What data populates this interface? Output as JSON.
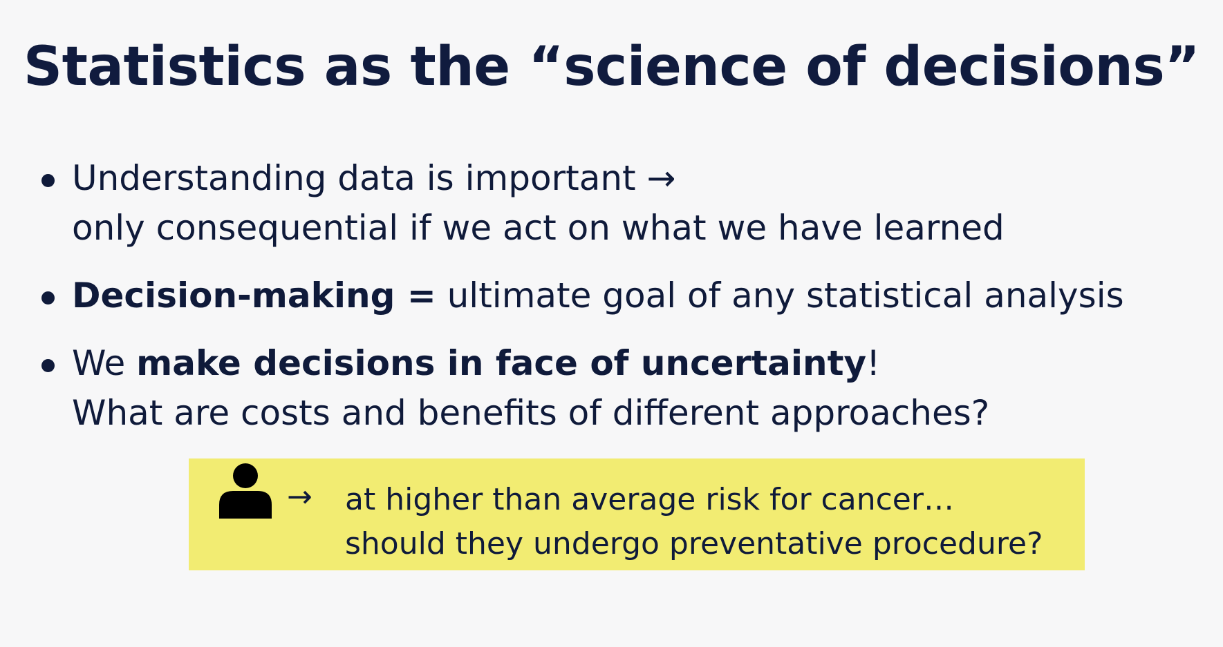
{
  "slide": {
    "title": "Statistics as the “science of decisions”",
    "bullets": [
      {
        "line1": "Understanding data is important →",
        "line2": "only consequential if we act on what we have learned"
      },
      {
        "bold": "Decision-making =",
        "text": " ultimate goal of any statistical analysis"
      },
      {
        "pre": "We ",
        "bold": "make decisions in face of uncertainty",
        "post": "!",
        "line2": "What are costs and benefits of different approaches?"
      }
    ],
    "callout": {
      "icon": "person-icon",
      "arrow": "→",
      "line1": "at higher than average risk for cancer…",
      "line2": "should they undergo preventative procedure?",
      "background": "#f2ec72"
    }
  }
}
